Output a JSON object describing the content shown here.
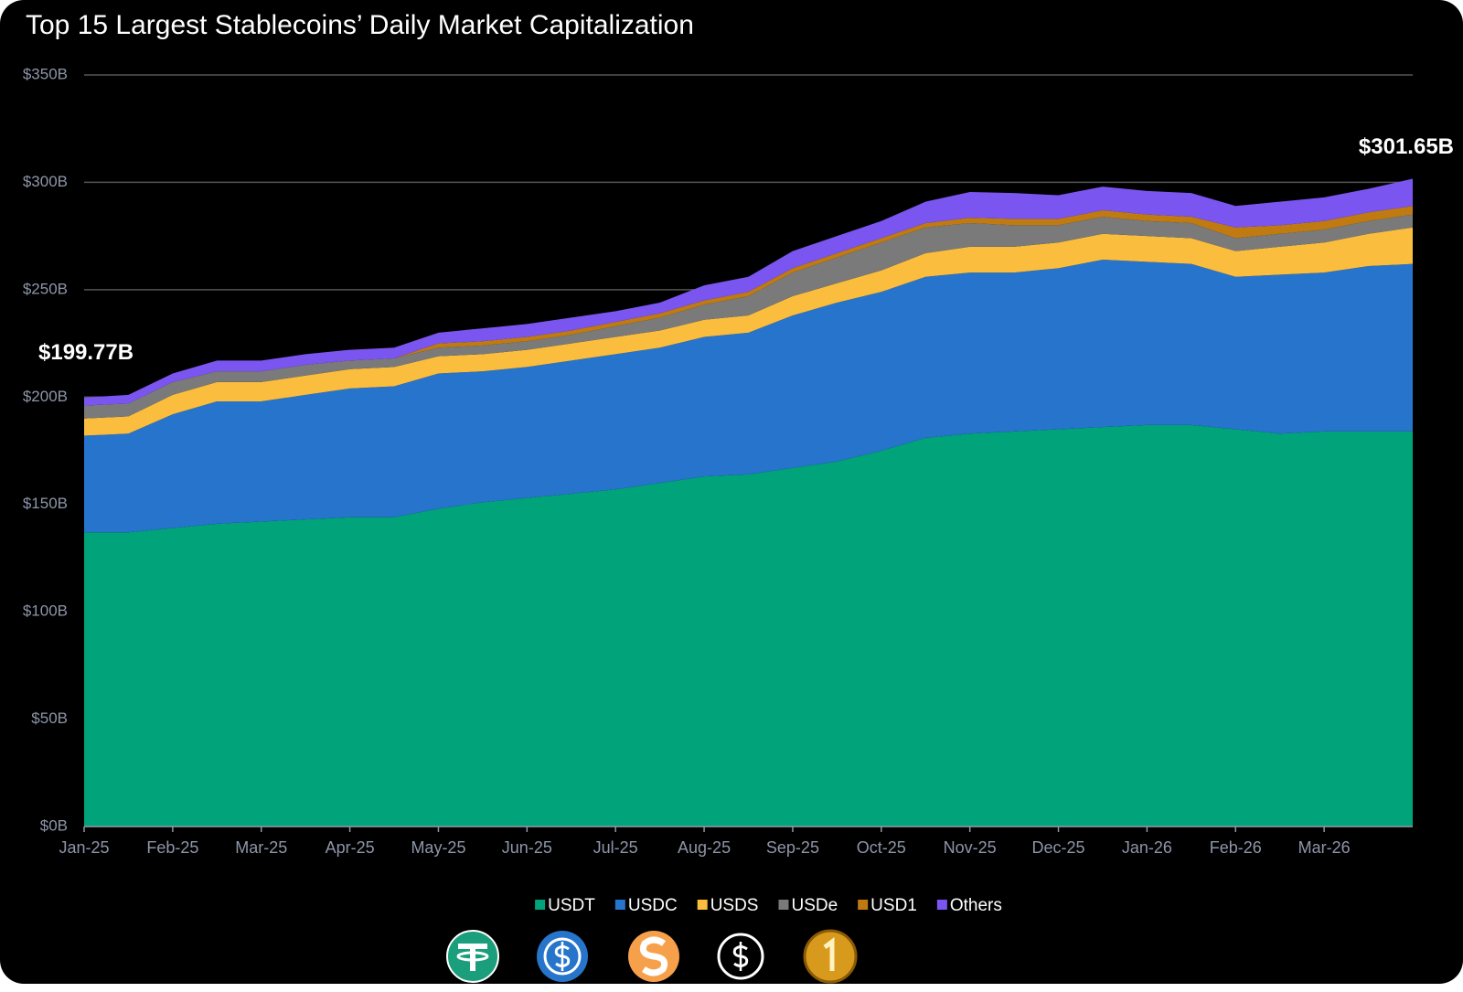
{
  "chart_data": {
    "type": "stacked_area",
    "title": "Top 15 Largest Stablecoins’ Daily Market Capitalization",
    "categories": [
      "Jan-25",
      null,
      "Feb-25",
      null,
      "Mar-25",
      null,
      "Apr-25",
      null,
      "May-25",
      null,
      "Jun-25",
      null,
      "Jul-25",
      null,
      "Aug-25",
      null,
      "Sep-25",
      null,
      "Oct-25",
      null,
      "Nov-25",
      null,
      "Dec-25",
      null,
      "Jan-26",
      null,
      "Feb-26",
      null,
      "Mar-26",
      null,
      null
    ],
    "series": [
      {
        "name": "USDT",
        "color": "#00a37a",
        "values": [
          137,
          137,
          139,
          141,
          142,
          143,
          144,
          144,
          148,
          151,
          153,
          155,
          157,
          160,
          163,
          164,
          167,
          170,
          175,
          181,
          183,
          184,
          185,
          186,
          187,
          187,
          185,
          183,
          184,
          184,
          184
        ]
      },
      {
        "name": "USDC",
        "color": "#2774cc",
        "values": [
          45,
          46,
          53,
          57,
          56,
          58,
          60,
          61,
          63,
          61,
          61,
          62,
          63,
          63,
          65,
          66,
          71,
          74,
          74,
          75,
          75,
          74,
          75,
          78,
          76,
          75,
          71,
          74,
          74,
          77,
          78
        ]
      },
      {
        "name": "USDS",
        "color": "#fbbd3d",
        "values": [
          8,
          8,
          9,
          9,
          9,
          9,
          9,
          9,
          8,
          8,
          8,
          8,
          8,
          8,
          8,
          8,
          9,
          9,
          10,
          11,
          12,
          12,
          12,
          12,
          12,
          12,
          12,
          13,
          14,
          15,
          17
        ]
      },
      {
        "name": "USDe",
        "color": "#7a7a7a",
        "values": [
          6,
          6,
          6,
          5,
          5,
          5,
          4,
          4,
          4,
          4,
          4,
          4,
          5,
          6,
          7,
          9,
          11,
          12,
          13,
          12,
          11,
          10,
          8,
          8,
          7,
          7,
          6,
          6,
          6,
          6,
          6
        ]
      },
      {
        "name": "USD1",
        "color": "#c07a12",
        "values": [
          0,
          0,
          0,
          0,
          0,
          0,
          0,
          0,
          2,
          2,
          2,
          2,
          2,
          2,
          2,
          2,
          2,
          2,
          2,
          2,
          2.5,
          3,
          3,
          3,
          3,
          3,
          5,
          4,
          4,
          4,
          4
        ]
      },
      {
        "name": "Others",
        "color": "#7b55f0",
        "values": [
          3.77,
          4,
          4,
          5,
          5,
          5,
          5,
          5,
          5,
          6,
          6,
          6,
          5,
          5,
          7,
          7,
          8,
          8,
          8,
          10,
          12,
          12,
          11,
          11,
          11,
          11,
          10,
          11,
          11,
          11,
          12.65
        ]
      }
    ],
    "annotations": [
      {
        "text": "$199.77B"
      },
      {
        "text": "$301.65B"
      }
    ],
    "ylim": [
      0,
      350
    ],
    "yticks": [
      {
        "value": 0,
        "label": "$0B"
      },
      {
        "value": 50,
        "label": "$50B"
      },
      {
        "value": 100,
        "label": "$100B"
      },
      {
        "value": 150,
        "label": "$150B"
      },
      {
        "value": 200,
        "label": "$200B"
      },
      {
        "value": 250,
        "label": "$250B"
      },
      {
        "value": 300,
        "label": "$300B"
      },
      {
        "value": 350,
        "label": "$350B"
      }
    ],
    "grid": true,
    "legend": "bottom"
  }
}
